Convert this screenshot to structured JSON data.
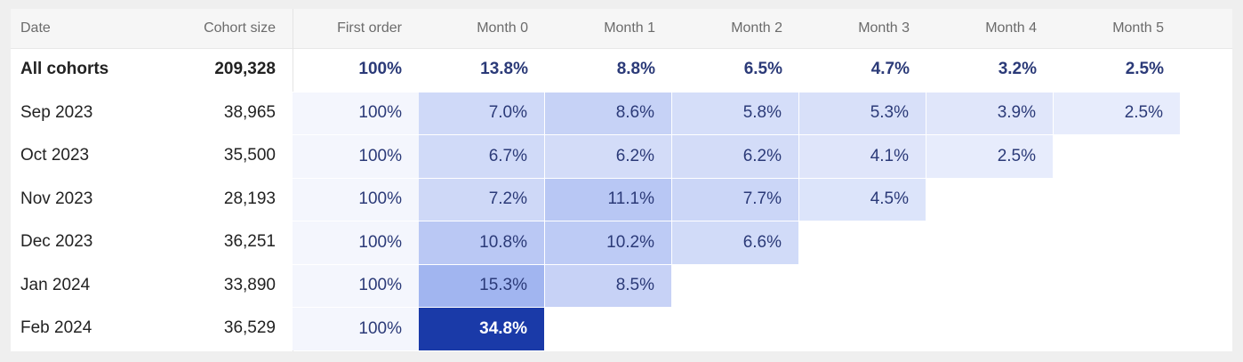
{
  "table": {
    "header": [
      "Date",
      "Cohort size",
      "First order",
      "Month 0",
      "Month 1",
      "Month 2",
      "Month 3",
      "Month 4",
      "Month 5"
    ],
    "rows": [
      [
        "All cohorts",
        "209,328",
        "100%",
        "13.8%",
        "8.8%",
        "6.5%",
        "4.7%",
        "3.2%",
        "2.5%"
      ],
      [
        "Sep 2023",
        "38,965",
        "100%",
        "7.0%",
        "8.6%",
        "5.8%",
        "5.3%",
        "3.9%",
        "2.5%"
      ],
      [
        "Oct 2023",
        "35,500",
        "100%",
        "6.7%",
        "6.2%",
        "6.2%",
        "4.1%",
        "2.5%"
      ],
      [
        "Nov 2023",
        "28,193",
        "100%",
        "7.2%",
        "11.1%",
        "7.7%",
        "4.5%"
      ],
      [
        "Dec 2023",
        "36,251",
        "100%",
        "10.8%",
        "10.2%",
        "6.6%"
      ],
      [
        "Jan 2024",
        "33,890",
        "100%",
        "15.3%",
        "8.5%"
      ],
      [
        "Feb 2024",
        "36,529",
        "100%",
        "34.8%"
      ]
    ]
  }
}
